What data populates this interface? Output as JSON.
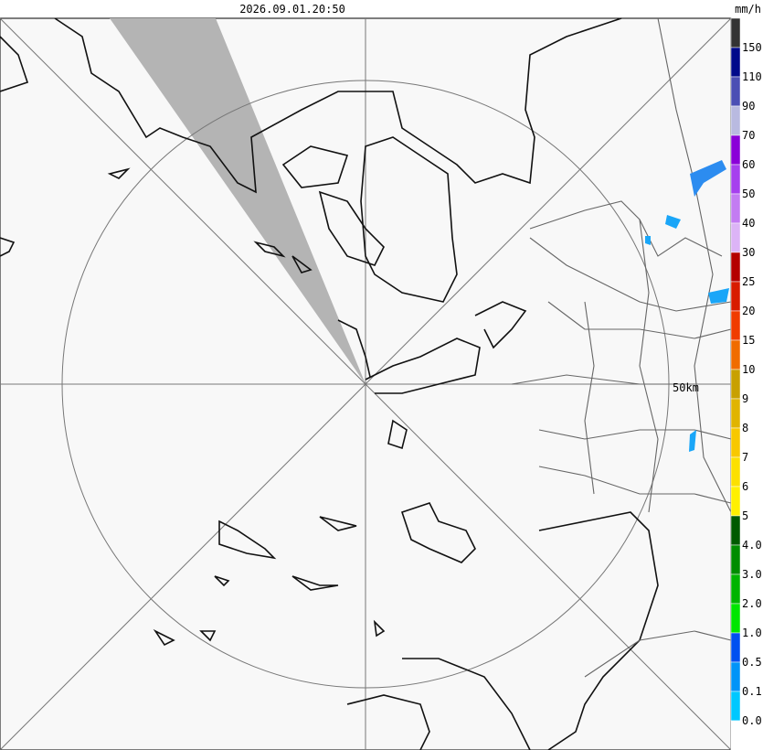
{
  "header": {
    "timestamp": "2026.09.01.20:50"
  },
  "range_label": "50km",
  "legend": {
    "unit": "mm/h",
    "labels": [
      "150",
      "110",
      "90",
      "70",
      "60",
      "50",
      "40",
      "30",
      "25",
      "20",
      "15",
      "10",
      "9",
      "8",
      "7",
      "6",
      "5",
      "4.0",
      "3.0",
      "2.0",
      "1.0",
      "0.5",
      "0.1",
      "0.0"
    ],
    "colors": [
      "#333333",
      "#000a8a",
      "#4b4fb4",
      "#b9bae0",
      "#8a00d8",
      "#a640ee",
      "#c37cf2",
      "#dcb4f6",
      "#b40000",
      "#d81c00",
      "#f03c00",
      "#f06c00",
      "#c8a000",
      "#e0b400",
      "#f8c800",
      "#fce000",
      "#fff000",
      "#005a00",
      "#008c00",
      "#00b400",
      "#00e600",
      "#0050f0",
      "#0094f8",
      "#00c8ff",
      "#ffffff"
    ]
  }
}
